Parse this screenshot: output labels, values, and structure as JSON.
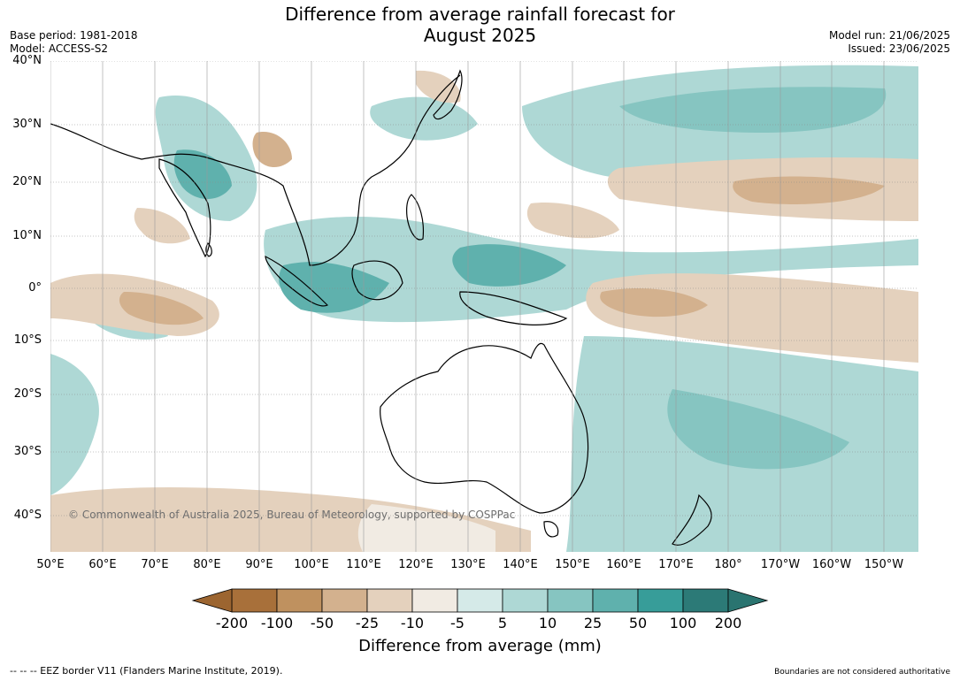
{
  "title_line1": "Difference from average rainfall forecast for",
  "title_line2": "August 2025",
  "base_period": "Base period: 1981-2018",
  "model": "Model: ACCESS-S2",
  "model_run": "Model run: 21/06/2025",
  "issued": "Issued: 23/06/2025",
  "copyright": "© Commonwealth of Australia 2025, Bureau of Meteorology, supported by COSPPac",
  "colorbar_label": "Difference from average (mm)",
  "footer_left": "--  --  -- EEZ border V11 (Flanders Marine Institute, 2019).",
  "footer_right": "Boundaries are not considered authoritative",
  "lat_labels": [
    "40°N",
    "30°N",
    "20°N",
    "10°N",
    "0°",
    "10°S",
    "20°S",
    "30°S",
    "40°S"
  ],
  "lon_labels": [
    "50°E",
    "60°E",
    "70°E",
    "80°E",
    "90°E",
    "100°E",
    "110°E",
    "120°E",
    "130°E",
    "140°E",
    "150°E",
    "160°E",
    "170°E",
    "180°",
    "170°W",
    "160°W",
    "150°W"
  ],
  "colorbar_ticks": [
    "-200",
    "-100",
    "-50",
    "-25",
    "-10",
    "-5",
    "5",
    "10",
    "25",
    "50",
    "100",
    "200"
  ],
  "colorbar_colors": [
    "#a8703a",
    "#bf915f",
    "#d3b18e",
    "#e4d1bd",
    "#f1ebe3",
    "#ffffff",
    "#d5eae8",
    "#aed8d5",
    "#86c5c1",
    "#5fb1ad",
    "#379d99",
    "#2c7a77"
  ],
  "colorbar_extend_low_color": "#9c6530",
  "colorbar_extend_high_color": "#2a7470"
}
